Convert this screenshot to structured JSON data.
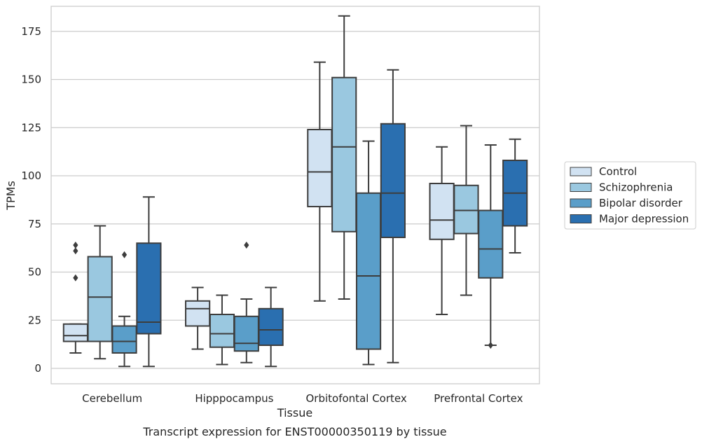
{
  "chart_data": {
    "type": "box",
    "title": "Transcript expression for ENST00000350119 by tissue",
    "xlabel": "Tissue",
    "ylabel": "TPMs",
    "ylim": [
      -8,
      188
    ],
    "yticks": [
      0,
      25,
      50,
      75,
      100,
      125,
      150,
      175
    ],
    "grid": true,
    "legend_position": "right",
    "categories": [
      "Cerebellum",
      "Hipppocampus",
      "Orbitofontal Cortex",
      "Prefrontal Cortex"
    ],
    "series": [
      {
        "name": "Control",
        "color": "#d1e2f2",
        "boxes": [
          {
            "whislo": 8,
            "q1": 14,
            "med": 17,
            "q3": 23,
            "whishi": 23,
            "fliers": [
              47,
              61,
              64
            ]
          },
          {
            "whislo": 10,
            "q1": 22,
            "med": 31,
            "q3": 35,
            "whishi": 42,
            "fliers": []
          },
          {
            "whislo": 35,
            "q1": 84,
            "med": 102,
            "q3": 124,
            "whishi": 159,
            "fliers": []
          },
          {
            "whislo": 28,
            "q1": 67,
            "med": 77,
            "q3": 96,
            "whishi": 115,
            "fliers": []
          }
        ]
      },
      {
        "name": "Schizophrenia",
        "color": "#9ac8e0",
        "boxes": [
          {
            "whislo": 5,
            "q1": 14,
            "med": 37,
            "q3": 58,
            "whishi": 74,
            "fliers": []
          },
          {
            "whislo": 2,
            "q1": 11,
            "med": 18,
            "q3": 28,
            "whishi": 38,
            "fliers": []
          },
          {
            "whislo": 36,
            "q1": 71,
            "med": 115,
            "q3": 151,
            "whishi": 183,
            "fliers": []
          },
          {
            "whislo": 38,
            "q1": 70,
            "med": 82,
            "q3": 95,
            "whishi": 126,
            "fliers": []
          }
        ]
      },
      {
        "name": "Bipolar disorder",
        "color": "#5a9ec9",
        "boxes": [
          {
            "whislo": 1,
            "q1": 8,
            "med": 14,
            "q3": 22,
            "whishi": 27,
            "fliers": [
              59
            ]
          },
          {
            "whislo": 3,
            "q1": 9,
            "med": 13,
            "q3": 27,
            "whishi": 36,
            "fliers": [
              64
            ]
          },
          {
            "whislo": 2,
            "q1": 10,
            "med": 48,
            "q3": 91,
            "whishi": 118,
            "fliers": []
          },
          {
            "whislo": 12,
            "q1": 47,
            "med": 62,
            "q3": 82,
            "whishi": 116,
            "fliers": [
              12
            ]
          }
        ]
      },
      {
        "name": "Major depression",
        "color": "#2a6fb0",
        "boxes": [
          {
            "whislo": 1,
            "q1": 18,
            "med": 24,
            "q3": 65,
            "whishi": 89,
            "fliers": []
          },
          {
            "whislo": 1,
            "q1": 12,
            "med": 20,
            "q3": 31,
            "whishi": 42,
            "fliers": []
          },
          {
            "whislo": 3,
            "q1": 68,
            "med": 91,
            "q3": 127,
            "whishi": 155,
            "fliers": []
          },
          {
            "whislo": 60,
            "q1": 74,
            "med": 91,
            "q3": 108,
            "whishi": 119,
            "fliers": []
          }
        ]
      }
    ]
  }
}
